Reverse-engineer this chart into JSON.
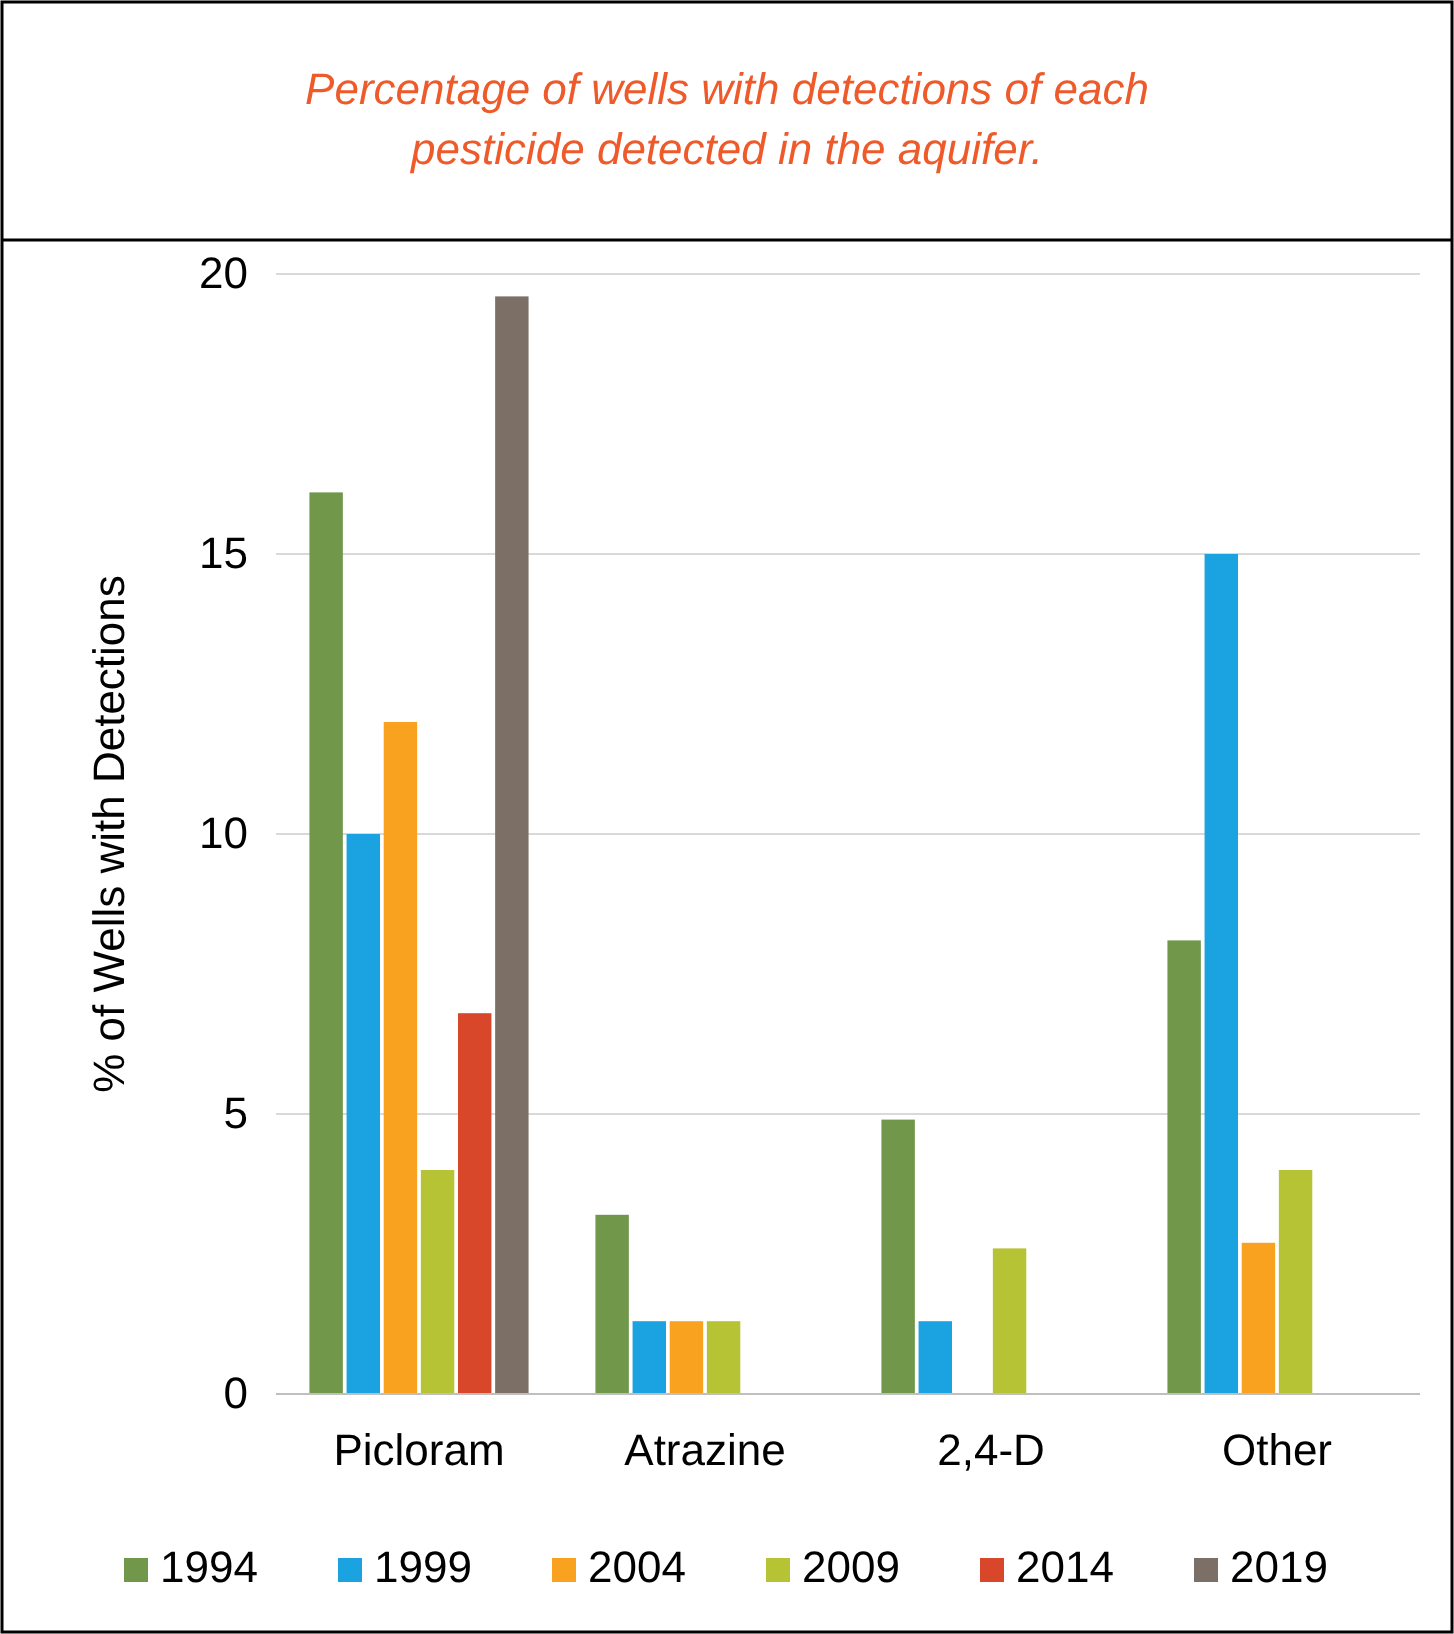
{
  "chart_data": {
    "type": "bar",
    "title": "Percentage of wells with detections of each pesticide detected in the aquifer.",
    "ylabel": "% of Wells with Detections",
    "categories": [
      "Picloram",
      "Atrazine",
      "2,4-D",
      "Other"
    ],
    "series": [
      {
        "name": "1994",
        "color": "#70974a",
        "values": [
          16.1,
          3.2,
          4.9,
          8.1
        ]
      },
      {
        "name": "1999",
        "color": "#1aa3e0",
        "values": [
          10,
          1.3,
          1.3,
          15
        ]
      },
      {
        "name": "2004",
        "color": "#f9a21f",
        "values": [
          12,
          1.3,
          null,
          2.7
        ]
      },
      {
        "name": "2009",
        "color": "#b5c334",
        "values": [
          4,
          1.3,
          2.6,
          4
        ]
      },
      {
        "name": "2014",
        "color": "#d9472a",
        "values": [
          6.8,
          null,
          null,
          null
        ]
      },
      {
        "name": "2019",
        "color": "#7b6f66",
        "values": [
          19.6,
          null,
          null,
          null
        ]
      }
    ],
    "ylim": [
      0,
      20
    ],
    "yticks": [
      0,
      5,
      10,
      15,
      20
    ],
    "grid": "y",
    "legend": "bottom"
  }
}
